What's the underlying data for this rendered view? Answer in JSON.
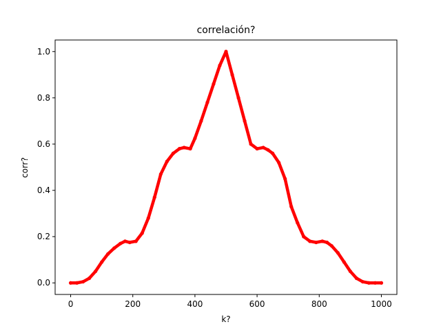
{
  "chart_data": {
    "type": "line",
    "title": "correlación?",
    "xlabel": "k?",
    "ylabel": "corr?",
    "xlim": [
      -50,
      1050
    ],
    "ylim": [
      -0.05,
      1.05
    ],
    "xticks": [
      0,
      200,
      400,
      600,
      800,
      1000
    ],
    "yticks": [
      0.0,
      0.2,
      0.4,
      0.6,
      0.8,
      1.0
    ],
    "xtick_labels": [
      "0",
      "200",
      "400",
      "600",
      "800",
      "1000"
    ],
    "ytick_labels": [
      "0.0",
      "0.2",
      "0.4",
      "0.6",
      "0.8",
      "1.0"
    ],
    "grid": false,
    "series": [
      {
        "color": "#ff0000",
        "marker": "dot",
        "x": [
          0,
          20,
          40,
          60,
          80,
          100,
          120,
          140,
          160,
          175,
          190,
          210,
          230,
          250,
          270,
          290,
          310,
          330,
          350,
          365,
          385,
          400,
          420,
          440,
          460,
          480,
          500,
          520,
          540,
          560,
          580,
          600,
          620,
          635,
          650,
          670,
          690,
          710,
          730,
          750,
          770,
          790,
          810,
          825,
          840,
          860,
          880,
          900,
          920,
          940,
          960,
          980,
          1000
        ],
        "y": [
          0.0,
          0.0,
          0.005,
          0.02,
          0.05,
          0.09,
          0.125,
          0.15,
          0.17,
          0.18,
          0.175,
          0.18,
          0.215,
          0.28,
          0.37,
          0.47,
          0.525,
          0.56,
          0.58,
          0.585,
          0.58,
          0.625,
          0.7,
          0.78,
          0.86,
          0.94,
          1.0,
          0.9,
          0.8,
          0.7,
          0.6,
          0.58,
          0.585,
          0.575,
          0.56,
          0.52,
          0.45,
          0.33,
          0.26,
          0.2,
          0.18,
          0.175,
          0.18,
          0.175,
          0.16,
          0.13,
          0.09,
          0.05,
          0.02,
          0.005,
          0.0,
          0.0,
          0.0
        ]
      }
    ]
  }
}
